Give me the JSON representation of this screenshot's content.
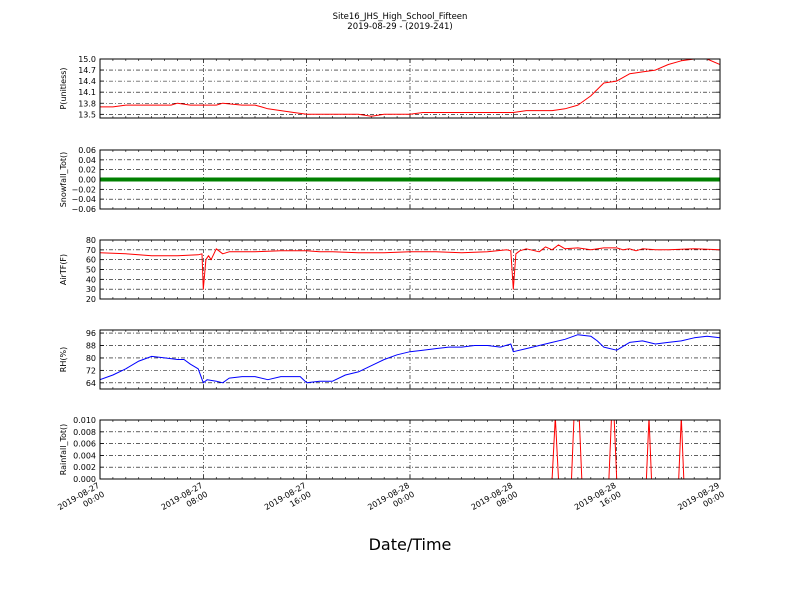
{
  "figure": {
    "title_line1": "Site16_JHS_High_School_Fifteen",
    "title_line2": "2019-08-29 - (2019-241)",
    "xlabel": "Date/Time"
  },
  "x_ticks": [
    {
      "pos": 0,
      "line1": "2019-08-27",
      "line2": "00:00"
    },
    {
      "pos": 8,
      "line1": "2019-08-27",
      "line2": "08:00"
    },
    {
      "pos": 16,
      "line1": "2019-08-27",
      "line2": "16:00"
    },
    {
      "pos": 24,
      "line1": "2019-08-28",
      "line2": "00:00"
    },
    {
      "pos": 32,
      "line1": "2019-08-28",
      "line2": "08:00"
    },
    {
      "pos": 40,
      "line1": "2019-08-28",
      "line2": "16:00"
    },
    {
      "pos": 48,
      "line1": "2019-08-29",
      "line2": "00:00"
    }
  ],
  "chart_data": [
    {
      "type": "line",
      "ylabel": "P(unitless)",
      "color": "#ff0000",
      "ylim": [
        13.4,
        15.0
      ],
      "yticks": [
        13.5,
        13.8,
        14.1,
        14.4,
        14.7,
        15.0
      ],
      "ytick_labels": [
        "13.5",
        "13.8",
        "14.1",
        "14.4",
        "14.7",
        "15.0"
      ],
      "x": [
        0,
        1,
        2,
        4,
        5.5,
        6,
        7,
        9,
        9.5,
        11,
        12,
        12.5,
        13,
        14,
        15,
        16,
        18,
        20,
        21,
        22,
        24,
        25,
        32,
        33,
        35,
        36,
        37,
        38,
        39,
        40,
        41,
        42,
        43,
        44,
        45,
        46,
        47,
        48
      ],
      "y": [
        13.7,
        13.7,
        13.75,
        13.75,
        13.75,
        13.8,
        13.75,
        13.75,
        13.8,
        13.75,
        13.75,
        13.7,
        13.65,
        13.6,
        13.55,
        13.5,
        13.5,
        13.5,
        13.45,
        13.5,
        13.5,
        13.55,
        13.55,
        13.6,
        13.6,
        13.65,
        13.75,
        14.0,
        14.35,
        14.4,
        14.6,
        14.65,
        14.7,
        14.85,
        14.95,
        15.0,
        15.0,
        14.85
      ]
    },
    {
      "type": "line",
      "ylabel": "Snowfall_Tot()",
      "color": "#008000",
      "ylim": [
        -0.06,
        0.06
      ],
      "yticks": [
        -0.06,
        -0.04,
        -0.02,
        0.0,
        0.02,
        0.04,
        0.06
      ],
      "ytick_labels": [
        "−0.06",
        "−0.04",
        "−0.02",
        "0.00",
        "0.02",
        "0.04",
        "0.06"
      ],
      "x": [
        0,
        48
      ],
      "y": [
        0,
        0
      ]
    },
    {
      "type": "line",
      "ylabel": "AirTF(F)",
      "color": "#ff0000",
      "ylim": [
        20,
        80
      ],
      "yticks": [
        20,
        30,
        40,
        50,
        60,
        70,
        80
      ],
      "ytick_labels": [
        "20",
        "30",
        "40",
        "50",
        "60",
        "70",
        "80"
      ],
      "x": [
        0,
        2,
        4,
        6,
        7.6,
        7.9,
        8.0,
        8.2,
        8.4,
        8.6,
        9,
        9.5,
        10,
        11,
        12,
        14,
        16,
        17,
        18,
        20,
        22,
        24,
        26,
        28,
        30,
        31.5,
        31.8,
        32.0,
        32.2,
        32.5,
        33,
        34,
        34.5,
        35,
        35.5,
        36,
        37,
        38,
        39,
        40,
        40.5,
        41,
        41.5,
        42,
        43,
        44,
        46,
        48
      ],
      "y": [
        67,
        66,
        64,
        64,
        65,
        66,
        30,
        60,
        64,
        60,
        71,
        66,
        68,
        68,
        68,
        69,
        69,
        68,
        68,
        67,
        67,
        68,
        68,
        67,
        68,
        70,
        69,
        30,
        66,
        69,
        71,
        68,
        73,
        70,
        75,
        71,
        72,
        70,
        72,
        72,
        70,
        71,
        69,
        71,
        70,
        70,
        71,
        70
      ]
    },
    {
      "type": "line",
      "ylabel": "RH(%)",
      "color": "#0000ff",
      "ylim": [
        60,
        98
      ],
      "yticks": [
        64,
        72,
        80,
        88,
        96
      ],
      "ytick_labels": [
        "64",
        "72",
        "80",
        "88",
        "96"
      ],
      "x": [
        0,
        1,
        2,
        3,
        4,
        5,
        6,
        6.5,
        7,
        7.6,
        8.0,
        8.3,
        9,
        9.5,
        10,
        11,
        12,
        13,
        14,
        15,
        15.5,
        16,
        17,
        18,
        19,
        20,
        21,
        22,
        23,
        24,
        25,
        26,
        27,
        28,
        29,
        30,
        31,
        31.8,
        32,
        33,
        34,
        35,
        36,
        37,
        38,
        38.5,
        39,
        40,
        41,
        42,
        43,
        44,
        45,
        46,
        47,
        48
      ],
      "y": [
        66,
        69,
        73,
        78,
        81,
        80,
        79,
        79,
        76,
        73,
        64,
        66,
        65,
        64,
        67,
        68,
        68,
        66,
        68,
        68,
        68,
        64,
        65,
        65,
        69,
        71,
        75,
        79,
        82,
        84,
        85,
        86,
        87,
        87,
        88,
        88,
        87,
        89,
        84,
        86,
        88,
        90,
        92,
        95,
        94,
        91,
        87,
        85,
        90,
        91,
        89,
        90,
        91,
        93,
        94,
        93
      ]
    },
    {
      "type": "line",
      "ylabel": "Rainfall_Tot()",
      "color": "#ff0000",
      "ylim": [
        0.0,
        0.01
      ],
      "yticks": [
        0.0,
        0.002,
        0.004,
        0.006,
        0.008,
        0.01
      ],
      "ytick_labels": [
        "0.000",
        "0.002",
        "0.004",
        "0.006",
        "0.008",
        "0.010"
      ],
      "x": [
        0,
        35.0,
        35.25,
        35.5,
        36.5,
        36.7,
        36.9,
        37.1,
        37.3,
        39.4,
        39.6,
        39.8,
        40.0,
        42.3,
        42.5,
        42.7,
        44.8,
        45.0,
        45.2,
        48
      ],
      "y": [
        0,
        0,
        0.0105,
        0,
        0,
        0.0105,
        0.0105,
        0.0105,
        0,
        0,
        0.0105,
        0.0105,
        0,
        0,
        0.0105,
        0,
        0,
        0.0105,
        0,
        0
      ]
    }
  ]
}
